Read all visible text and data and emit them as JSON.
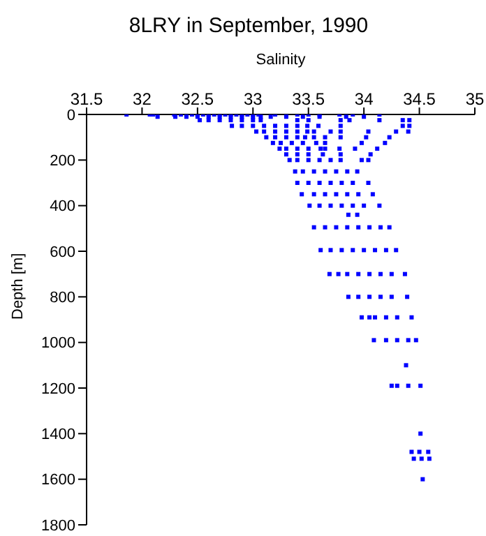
{
  "chart_data": {
    "type": "scatter",
    "title": "8LRY in September, 1990",
    "xlabel": "Salinity",
    "ylabel": "Depth [m]",
    "xlim": [
      31.5,
      35
    ],
    "xticks": [
      31.5,
      32,
      32.5,
      33,
      33.5,
      34,
      34.5,
      35
    ],
    "ylim": [
      1800,
      0
    ],
    "yticks": [
      0,
      200,
      400,
      600,
      800,
      1000,
      1200,
      1400,
      1600,
      1800
    ],
    "marker": "square",
    "grid": false,
    "legend": false,
    "series": [
      {
        "color": "#0000ff",
        "x": [
          31.86,
          32.07,
          32.1,
          32.29,
          32.35,
          32.4,
          32.45,
          32.5,
          32.55,
          32.6,
          32.65,
          32.7,
          32.75,
          32.8,
          32.85,
          32.9,
          32.95,
          33.0,
          33.05,
          33.2,
          33.3,
          33.4,
          33.5,
          33.6,
          33.78,
          33.9,
          34.14,
          32.14,
          32.3,
          32.4,
          32.5,
          32.6,
          32.7,
          32.8,
          32.9,
          33.0,
          33.07,
          33.16,
          33.3,
          33.45,
          33.6,
          33.84,
          34.0,
          32.52,
          32.6,
          32.7,
          32.8,
          32.9,
          33.0,
          33.07,
          33.4,
          33.5,
          33.79,
          33.87,
          34.14,
          34.35,
          34.41,
          32.81,
          32.9,
          33.0,
          33.1,
          33.2,
          33.3,
          33.4,
          33.49,
          33.59,
          33.79,
          34.35,
          34.41,
          33.03,
          33.1,
          33.2,
          33.3,
          33.4,
          33.49,
          33.55,
          33.7,
          33.79,
          34.04,
          34.29,
          34.4,
          33.12,
          33.2,
          33.3,
          33.4,
          33.47,
          33.55,
          33.65,
          33.79,
          34.02,
          34.23,
          33.18,
          33.25,
          33.35,
          33.45,
          33.57,
          33.65,
          33.98,
          34.19,
          33.24,
          33.3,
          33.4,
          33.5,
          33.61,
          33.65,
          33.78,
          33.92,
          34.12,
          33.3,
          33.4,
          33.5,
          33.63,
          33.79,
          34.06,
          33.33,
          33.4,
          33.5,
          33.6,
          33.7,
          33.79,
          33.98,
          34.04,
          33.38,
          33.45,
          33.55,
          33.65,
          33.75,
          33.85,
          33.94,
          33.4,
          33.5,
          33.6,
          33.7,
          33.8,
          33.9,
          34.04,
          33.44,
          33.55,
          33.65,
          33.75,
          33.85,
          33.95,
          34.08,
          33.51,
          33.6,
          33.7,
          33.8,
          33.9,
          34.0,
          34.14,
          33.86,
          33.94,
          33.55,
          33.65,
          33.75,
          33.85,
          33.95,
          34.05,
          34.15,
          34.23,
          33.61,
          33.7,
          33.8,
          33.9,
          34.0,
          34.1,
          34.2,
          34.29,
          33.69,
          33.77,
          33.85,
          33.95,
          34.05,
          34.15,
          34.25,
          34.37,
          33.86,
          33.95,
          34.05,
          34.15,
          34.25,
          34.39,
          33.98,
          34.05,
          34.1,
          34.2,
          34.3,
          34.43,
          34.09,
          34.2,
          34.3,
          34.4,
          34.47,
          34.38,
          34.25,
          34.3,
          34.4,
          34.51,
          34.51,
          34.43,
          34.5,
          34.58,
          34.45,
          34.52,
          34.59,
          34.53
        ],
        "values": [
          0,
          0,
          0,
          0,
          0,
          0,
          0,
          0,
          0,
          0,
          0,
          0,
          0,
          0,
          0,
          0,
          0,
          0,
          0,
          0,
          0,
          0,
          0,
          0,
          0,
          0,
          0,
          10,
          10,
          10,
          10,
          10,
          10,
          10,
          10,
          10,
          10,
          10,
          10,
          10,
          10,
          10,
          10,
          25,
          25,
          25,
          25,
          25,
          25,
          25,
          25,
          25,
          25,
          25,
          25,
          25,
          25,
          50,
          50,
          50,
          50,
          50,
          50,
          50,
          50,
          50,
          50,
          50,
          50,
          75,
          75,
          75,
          75,
          75,
          75,
          75,
          75,
          75,
          75,
          75,
          75,
          100,
          100,
          100,
          100,
          100,
          100,
          100,
          100,
          100,
          100,
          125,
          125,
          125,
          125,
          125,
          125,
          125,
          125,
          150,
          150,
          150,
          150,
          150,
          150,
          150,
          150,
          150,
          175,
          175,
          175,
          175,
          175,
          175,
          200,
          200,
          200,
          200,
          200,
          200,
          200,
          200,
          250,
          250,
          250,
          250,
          250,
          250,
          250,
          300,
          300,
          300,
          300,
          300,
          300,
          300,
          350,
          350,
          350,
          350,
          350,
          350,
          350,
          400,
          400,
          400,
          400,
          400,
          400,
          400,
          440,
          440,
          495,
          495,
          495,
          495,
          495,
          495,
          495,
          495,
          595,
          595,
          595,
          595,
          595,
          595,
          595,
          595,
          700,
          700,
          700,
          700,
          700,
          700,
          700,
          700,
          800,
          800,
          800,
          800,
          800,
          800,
          890,
          890,
          890,
          890,
          890,
          890,
          990,
          990,
          990,
          990,
          990,
          1100,
          1190,
          1190,
          1190,
          1190,
          1400,
          1480,
          1480,
          1480,
          1510,
          1510,
          1510,
          1600
        ]
      }
    ]
  }
}
